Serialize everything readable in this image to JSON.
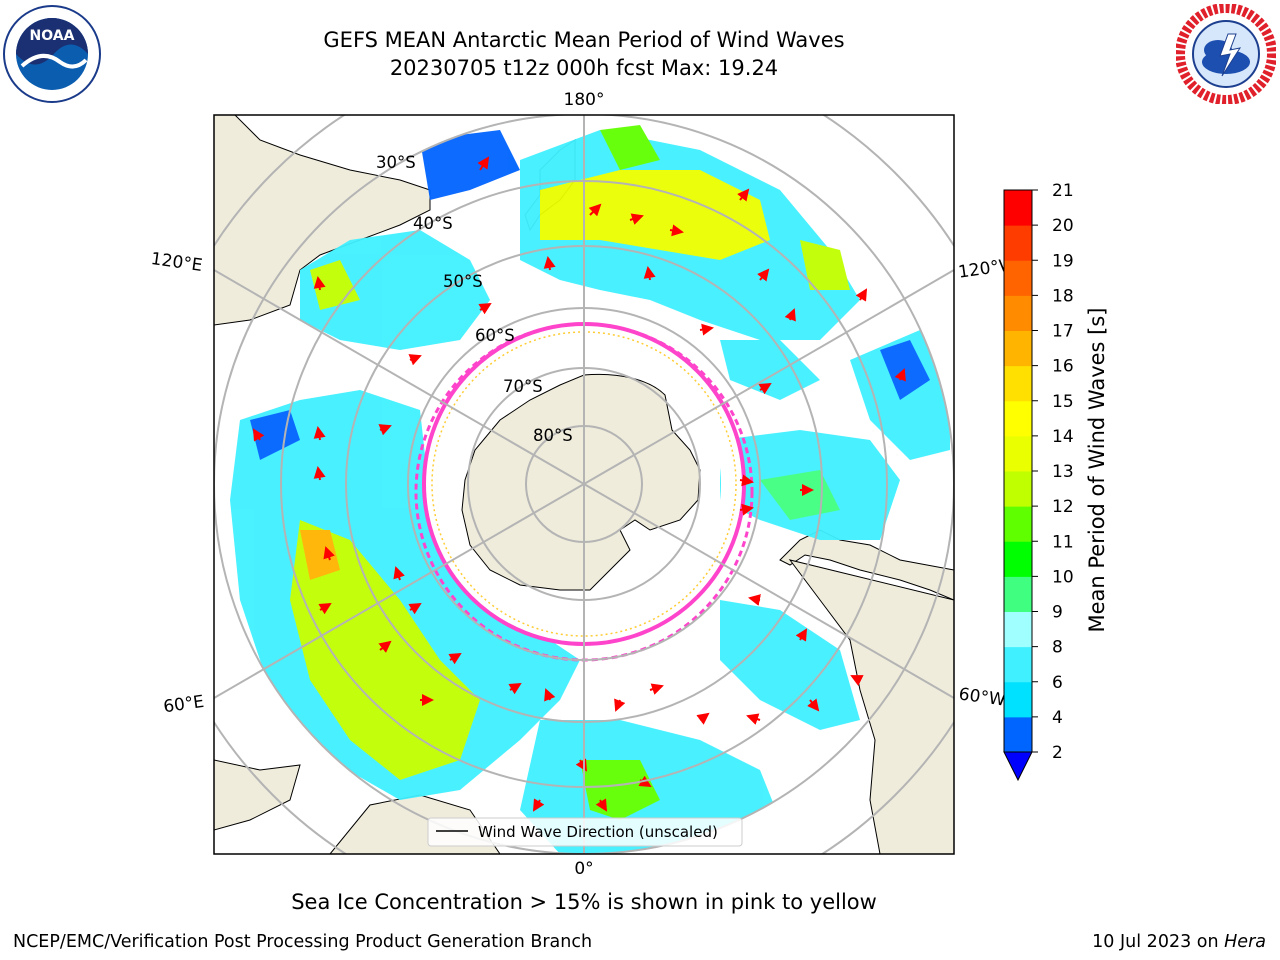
{
  "title_line1": "GEFS MEAN Antarctic Mean Period of Wind Waves",
  "title_line2": "20230705 t12z 000h fcst   Max: 19.24",
  "logos": {
    "left": "noaa-logo",
    "right": "national-weather-service-logo"
  },
  "map": {
    "projection": "south-polar-stereographic",
    "longitude_labels": {
      "top": "180°",
      "bottom": "0°",
      "upper_left": "120°E",
      "upper_right": "120°W",
      "lower_left": "60°E",
      "lower_right": "60°W"
    },
    "latitude_labels": [
      "30°S",
      "40°S",
      "50°S",
      "60°S",
      "70°S",
      "80°S"
    ],
    "legend": "Wind Wave Direction (unscaled)",
    "colors": {
      "land": "#efecdc",
      "graticule": "#b4b4b4",
      "arrows": "#ff0000",
      "sea_ice": "#ff44cc"
    }
  },
  "colorbar": {
    "label": "Mean Period of Wind Waves [s]",
    "ticks": [
      "2",
      "4",
      "6",
      "8",
      "9",
      "10",
      "11",
      "12",
      "13",
      "14",
      "15",
      "16",
      "17",
      "18",
      "19",
      "20",
      "21"
    ],
    "colors": [
      "#0064ff",
      "#00e0ff",
      "#40f0ff",
      "#a0ffff",
      "#40ff80",
      "#00ff00",
      "#60ff00",
      "#c0ff00",
      "#eaff00",
      "#ffff00",
      "#ffe000",
      "#ffb400",
      "#ff8c00",
      "#ff6400",
      "#ff3c00",
      "#ff0000"
    ],
    "under_color": "#0000ff"
  },
  "caption": "Sea Ice Concentration > 15% is shown in pink to yellow",
  "footer": {
    "left": "NCEP/EMC/Verification Post Processing Product Generation Branch",
    "right_prefix": "10 Jul 2023 on ",
    "right_italic": "Hera"
  }
}
